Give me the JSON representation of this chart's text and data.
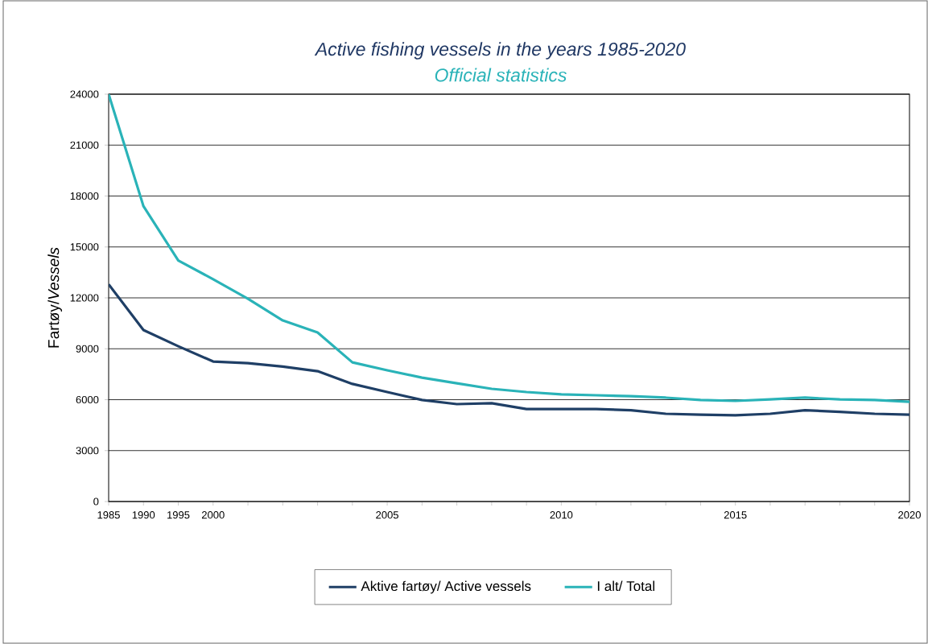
{
  "chart_data": {
    "type": "line",
    "title": "Active fishing vessels in the years 1985-2020",
    "subtitle": "Official statistics",
    "ylabel": "Fartøy/*Vessels*",
    "categories": [
      "1985",
      "1990",
      "1995",
      "2000",
      null,
      null,
      null,
      null,
      "2005",
      null,
      null,
      null,
      null,
      "2010",
      null,
      null,
      null,
      null,
      "2015",
      null,
      null,
      null,
      null,
      "2020"
    ],
    "series": [
      {
        "name": "Aktive fartøy/ Active vessels",
        "color": "#1f3f66",
        "values": [
          12800,
          10100,
          9150,
          8250,
          8150,
          7950,
          7680,
          6930,
          6450,
          5980,
          5740,
          5790,
          5450,
          5450,
          5450,
          5380,
          5170,
          5120,
          5080,
          5170,
          5380,
          5280,
          5170,
          5120
        ]
      },
      {
        "name": "I alt/ Total",
        "color": "#2ab3b8",
        "values": [
          24000,
          17400,
          14200,
          13100,
          11950,
          10670,
          9960,
          8200,
          7730,
          7300,
          6970,
          6640,
          6450,
          6310,
          6260,
          6210,
          6120,
          5980,
          5930,
          6020,
          6120,
          6020,
          5980,
          5880
        ]
      }
    ],
    "ylim": [
      0,
      24000
    ],
    "yticks": [
      0,
      3000,
      6000,
      9000,
      12000,
      15000,
      18000,
      21000,
      24000
    ],
    "grid": "y",
    "legend": "bottom"
  }
}
